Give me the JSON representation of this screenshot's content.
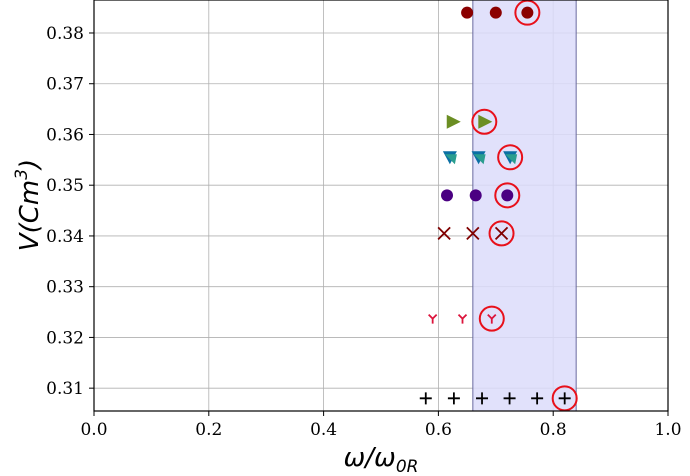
{
  "chart_data": {
    "type": "scatter",
    "title": "",
    "xlabel": "ω/ω",
    "xlabel_sub": "0R",
    "ylabel": "V(Cm",
    "ylabel_sup": "3",
    "ylabel_close": ")",
    "xlim": [
      0.0,
      1.0
    ],
    "ylim": [
      0.3055,
      0.3865
    ],
    "grid": true,
    "x_ticks": [
      "0.0",
      "0.2",
      "0.4",
      "0.6",
      "0.8",
      "1.0"
    ],
    "y_ticks": [
      "0.31",
      "0.32",
      "0.33",
      "0.34",
      "0.35",
      "0.36",
      "0.37",
      "0.38"
    ],
    "shaded_region": {
      "x": [
        0.66,
        0.84
      ],
      "color": "#dcdcfa",
      "edge": "#6a6aa0"
    },
    "highlight_color": "#e8101a",
    "series": [
      {
        "marker": "circle",
        "color": "#8b0000",
        "y": 0.384,
        "x": [
          0.65,
          0.7,
          0.755
        ],
        "highlight": [
          0.755
        ]
      },
      {
        "marker": "triangle-right",
        "color": "#6b8e23",
        "y": 0.3625,
        "x": [
          0.625,
          0.68
        ],
        "highlight": [
          0.68
        ]
      },
      {
        "marker": "tri-split",
        "color": "#0b6fa4",
        "color2": "#2a9d8f",
        "y": 0.3555,
        "x": [
          0.62,
          0.67,
          0.725
        ],
        "highlight": [
          0.725
        ]
      },
      {
        "marker": "circle",
        "color": "#4b0082",
        "y": 0.348,
        "x": [
          0.615,
          0.665,
          0.72
        ],
        "highlight": [
          0.72
        ]
      },
      {
        "marker": "x",
        "color": "#800000",
        "y": 0.3405,
        "x": [
          0.61,
          0.66,
          0.71
        ],
        "highlight": [
          0.71
        ]
      },
      {
        "marker": "tri-down",
        "color": "#dc143c",
        "y": 0.3237,
        "x": [
          0.59,
          0.642,
          0.693
        ],
        "highlight": [
          0.693
        ]
      },
      {
        "marker": "plus",
        "color": "#000000",
        "y": 0.308,
        "x": [
          0.578,
          0.627,
          0.676,
          0.724,
          0.772,
          0.82
        ],
        "highlight": [
          0.82
        ]
      }
    ]
  }
}
